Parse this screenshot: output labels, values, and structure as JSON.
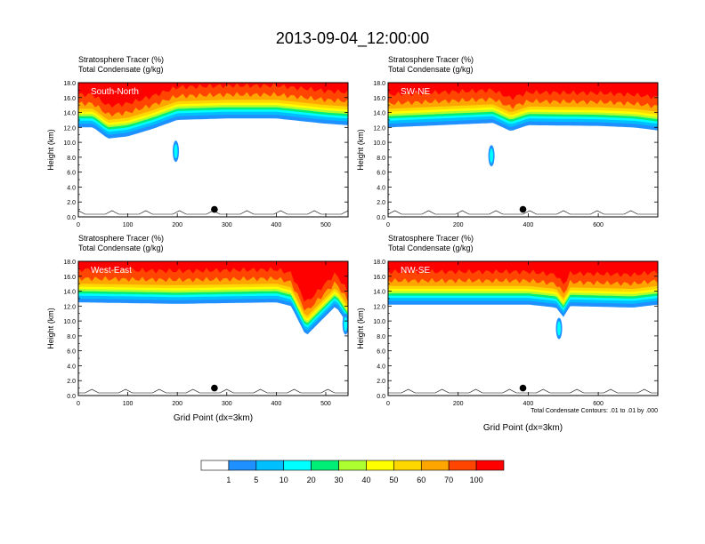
{
  "figure_title": "2013-09-04_12:00:00",
  "x_axis_label": "Grid Point (dx=3km)",
  "colorbar": {
    "labels": [
      "1",
      "5",
      "10",
      "20",
      "30",
      "40",
      "50",
      "60",
      "70",
      "100"
    ],
    "colors": [
      "#ffffff",
      "#1e90ff",
      "#00bfff",
      "#00ffff",
      "#00ee76",
      "#00ff00",
      "#adff2f",
      "#ffff00",
      "#ffd700",
      "#ffa500",
      "#ff4500",
      "#ff0000"
    ]
  },
  "chart_data": [
    {
      "type": "heatmap",
      "label": "South-North",
      "header_line1": "Stratosphere Tracer   (%)",
      "header_line2": "Total Condensate   (g/kg)",
      "ylabel": "Height (km)",
      "xlabel": "",
      "xlim": [
        0,
        545
      ],
      "ylim": [
        0,
        18
      ],
      "xticks": [
        "0",
        "100",
        "200",
        "300",
        "400",
        "500"
      ],
      "xtick_values": [
        0,
        100,
        200,
        300,
        400,
        500
      ],
      "yticks": [
        "0.0",
        "2.0",
        "4.0",
        "6.0",
        "8.0",
        "10.0",
        "12.0",
        "14.0",
        "16.0",
        "18.0"
      ],
      "tracer_base_km": [
        [
          0,
          12.0
        ],
        [
          30,
          12.0
        ],
        [
          60,
          10.5
        ],
        [
          100,
          10.8
        ],
        [
          150,
          11.8
        ],
        [
          200,
          13.0
        ],
        [
          300,
          13.2
        ],
        [
          400,
          13.2
        ],
        [
          500,
          12.5
        ],
        [
          545,
          12.3
        ]
      ],
      "marker": {
        "x": 275,
        "y": 1.0
      },
      "isolated_blob": {
        "x": 197,
        "y": 8.8
      }
    },
    {
      "type": "heatmap",
      "label": "SW-NE",
      "header_line1": "Stratosphere Tracer   (%)",
      "header_line2": "Total Condensate   (g/kg)",
      "ylabel": "Height (km)",
      "xlabel": "",
      "xlim": [
        0,
        770
      ],
      "ylim": [
        0,
        18
      ],
      "xticks": [
        "0",
        "200",
        "400",
        "600"
      ],
      "xtick_values": [
        0,
        200,
        400,
        600
      ],
      "yticks": [
        "0.0",
        "2.0",
        "4.0",
        "6.0",
        "8.0",
        "10.0",
        "12.0",
        "14.0",
        "16.0",
        "18.0"
      ],
      "tracer_base_km": [
        [
          0,
          12.0
        ],
        [
          200,
          12.4
        ],
        [
          300,
          12.6
        ],
        [
          350,
          11.5
        ],
        [
          400,
          12.3
        ],
        [
          600,
          12.2
        ],
        [
          700,
          12.0
        ],
        [
          770,
          11.6
        ]
      ],
      "marker": {
        "x": 385,
        "y": 1.0
      },
      "isolated_blob": {
        "x": 295,
        "y": 8.2
      }
    },
    {
      "type": "heatmap",
      "label": "West-East",
      "header_line1": "Stratosphere Tracer   (%)",
      "header_line2": "Total Condensate   (g/kg)",
      "ylabel": "Height (km)",
      "xlabel": "Grid Point (dx=3km)",
      "xlim": [
        0,
        545
      ],
      "ylim": [
        0,
        18
      ],
      "xticks": [
        "0",
        "100",
        "200",
        "300",
        "400",
        "500"
      ],
      "xtick_values": [
        0,
        100,
        200,
        300,
        400,
        500
      ],
      "yticks": [
        "0.0",
        "2.0",
        "4.0",
        "6.0",
        "8.0",
        "10.0",
        "12.0",
        "14.0",
        "16.0",
        "18.0"
      ],
      "tracer_base_km": [
        [
          0,
          12.5
        ],
        [
          200,
          12.3
        ],
        [
          400,
          12.5
        ],
        [
          430,
          12.0
        ],
        [
          460,
          8.0
        ],
        [
          490,
          10.0
        ],
        [
          520,
          12.0
        ],
        [
          545,
          9.5
        ]
      ],
      "marker": {
        "x": 275,
        "y": 1.0
      },
      "isolated_blob": {
        "x": 540,
        "y": 9.6
      }
    },
    {
      "type": "heatmap",
      "label": "NW-SE",
      "header_line1": "Stratosphere Tracer   (%)",
      "header_line2": "Total Condensate   (g/kg)",
      "ylabel": "Height (km)",
      "xlabel": "Grid Point (dx=3km)",
      "footnote": "Total Condensate Contours: .01 to .01 by .000",
      "xlim": [
        0,
        770
      ],
      "ylim": [
        0,
        18
      ],
      "xticks": [
        "0",
        "200",
        "400",
        "600"
      ],
      "xtick_values": [
        0,
        200,
        400,
        600
      ],
      "yticks": [
        "0.0",
        "2.0",
        "4.0",
        "6.0",
        "8.0",
        "10.0",
        "12.0",
        "14.0",
        "16.0",
        "18.0"
      ],
      "tracer_base_km": [
        [
          0,
          12.2
        ],
        [
          400,
          12.2
        ],
        [
          480,
          11.8
        ],
        [
          500,
          10.5
        ],
        [
          520,
          12.0
        ],
        [
          700,
          11.8
        ],
        [
          770,
          12.2
        ]
      ],
      "marker": {
        "x": 385,
        "y": 1.0
      },
      "isolated_blob": {
        "x": 488,
        "y": 9.0
      }
    }
  ]
}
